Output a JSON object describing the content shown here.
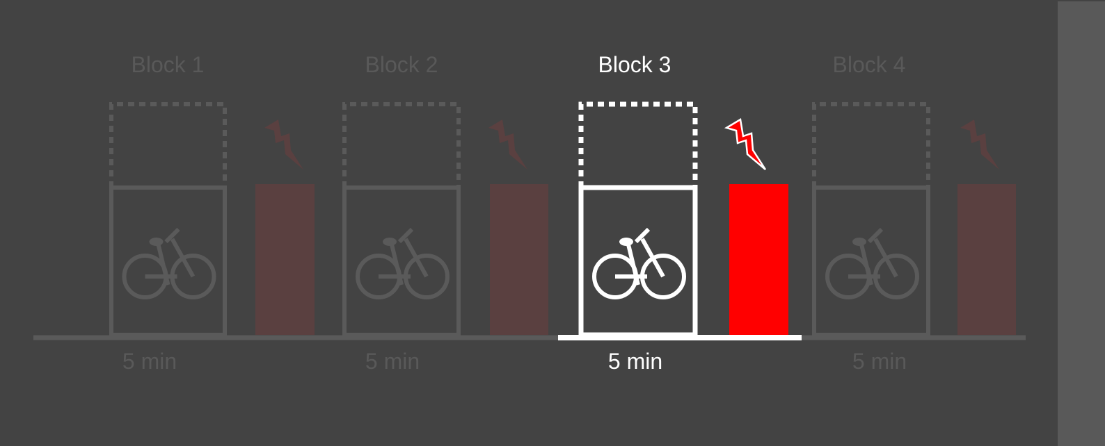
{
  "diagram": {
    "active_block": 3,
    "colors": {
      "background": "#434343",
      "inactive_stroke": "#5a5a5a",
      "inactive_text": "#595959",
      "active_stroke": "#ffffff",
      "active_text": "#ffffff",
      "inactive_battery": "#5a4040",
      "active_battery": "#ff0000",
      "inactive_bolt": "#5a4040",
      "active_bolt": "#ff0000",
      "scrollbar": "#595959"
    },
    "icons": {
      "bike": "bicycle-icon",
      "bolt": "lightning-bolt-icon",
      "battery": "battery-bar"
    },
    "blocks": [
      {
        "label": "Block 1",
        "duration": "5 min",
        "active": false
      },
      {
        "label": "Block 2",
        "duration": "5 min",
        "active": false
      },
      {
        "label": "Block 3",
        "duration": "5 min",
        "active": true
      },
      {
        "label": "Block 4",
        "duration": "5 min",
        "active": false
      }
    ]
  }
}
